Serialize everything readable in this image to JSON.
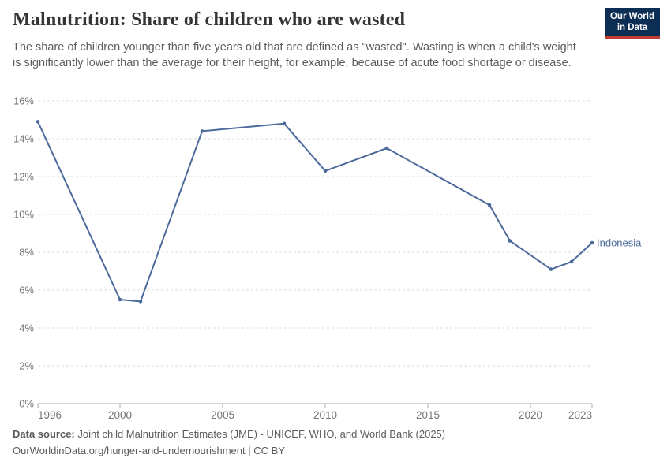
{
  "header": {
    "title": "Malnutrition: Share of children who are wasted",
    "subtitle": "The share of children younger than five years old that are defined as \"wasted\". Wasting is when a child's weight is significantly lower than the average for their height, for example, because of acute food shortage or disease.",
    "logo": {
      "line1": "Our World",
      "line2": "in Data"
    }
  },
  "chart_data": {
    "type": "line",
    "title": "Malnutrition: Share of children who are wasted",
    "xlabel": "",
    "ylabel": "",
    "xlim": [
      1996,
      2023
    ],
    "ylim": [
      0,
      16
    ],
    "xticks": [
      1996,
      2000,
      2005,
      2010,
      2015,
      2020,
      2023
    ],
    "yticks": [
      0,
      2,
      4,
      6,
      8,
      10,
      12,
      14,
      16
    ],
    "ytick_suffix": "%",
    "grid": "horizontal-dashed",
    "legend": "line-end-label",
    "series": [
      {
        "name": "Indonesia",
        "years": [
          1996,
          2000,
          2001,
          2004,
          2008,
          2010,
          2013,
          2018,
          2019,
          2021,
          2022,
          2023
        ],
        "values": [
          14.9,
          5.5,
          5.4,
          14.4,
          14.8,
          12.3,
          13.5,
          10.5,
          8.6,
          7.1,
          7.5,
          8.5
        ]
      }
    ]
  },
  "footer": {
    "source_label": "Data source:",
    "source_text": "Joint child Malnutrition Estimates (JME) - UNICEF, WHO, and World Bank (2025)",
    "attribution": "OurWorldinData.org/hunger-and-undernourishment | CC BY"
  },
  "colors": {
    "line": "#4C6A9C",
    "title_text": "#353535",
    "subtitle_text": "#5b5b5b",
    "tick_text": "#737373",
    "grid": "#dcdcdc",
    "axis": "#a8a8a8",
    "footer_text": "#5b5b5b",
    "logo_bg": "#0d2e54",
    "logo_accent": "#c43b33"
  }
}
